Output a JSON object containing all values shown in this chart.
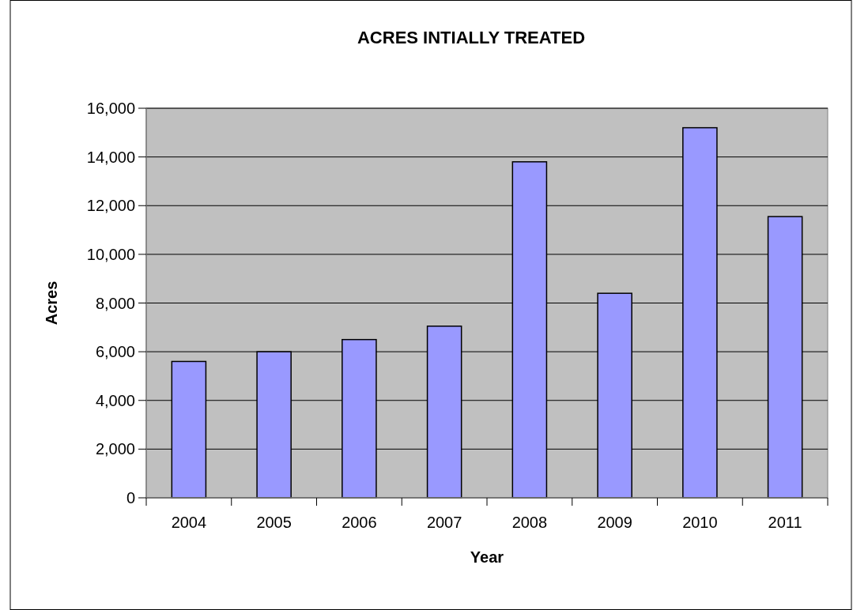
{
  "chart_data": {
    "type": "bar",
    "title": "ACRES INTIALLY TREATED",
    "xlabel": "Year",
    "ylabel": "Acres",
    "categories": [
      "2004",
      "2005",
      "2006",
      "2007",
      "2008",
      "2009",
      "2010",
      "2011"
    ],
    "values": [
      5600,
      6000,
      6500,
      7050,
      13800,
      8400,
      15200,
      11550
    ],
    "color": "#9999ff",
    "ylim": [
      0,
      16000
    ],
    "yticks": [
      {
        "value": 0,
        "label": "0"
      },
      {
        "value": 2000,
        "label": "2,000"
      },
      {
        "value": 4000,
        "label": "4,000"
      },
      {
        "value": 6000,
        "label": "6,000"
      },
      {
        "value": 8000,
        "label": "8,000"
      },
      {
        "value": 10000,
        "label": "10,000"
      },
      {
        "value": 12000,
        "label": "12,000"
      },
      {
        "value": 14000,
        "label": "14,000"
      },
      {
        "value": 16000,
        "label": "16,000"
      }
    ],
    "grid": "y"
  }
}
